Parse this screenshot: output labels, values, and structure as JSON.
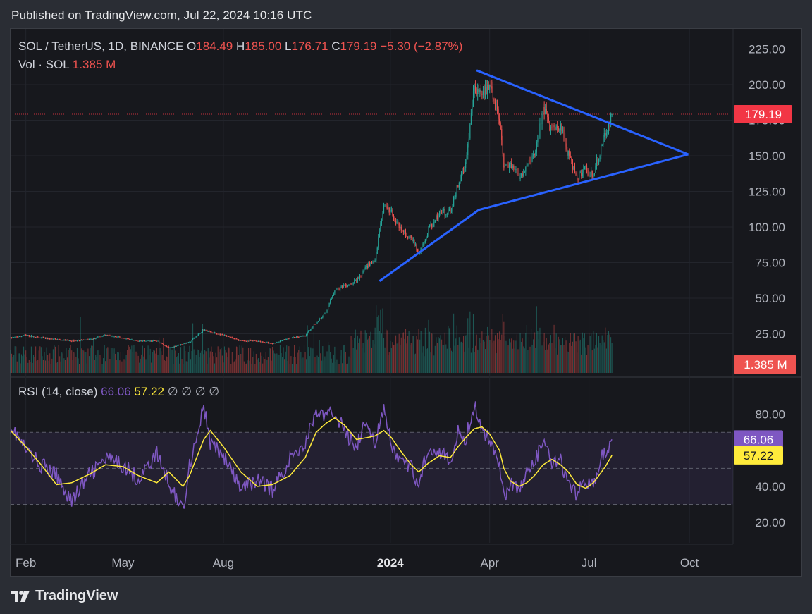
{
  "published": "Published on TradingView.com, Jul 22, 2024 10:16 UTC",
  "brand": {
    "name": "TradingView"
  },
  "colors": {
    "up": "#26a69a",
    "down": "#ef5350",
    "trendline": "#2962ff",
    "rsi": "#7e57c2",
    "rsi_ma": "#ffeb3b",
    "price_label": "#f23645"
  },
  "chart_data": [
    {
      "type": "candlestick",
      "symbol_line": {
        "name": "SOL / TetherUS, 1D, BINANCE",
        "o_label": "O",
        "o": "184.49",
        "h_label": "H",
        "h": "185.00",
        "l_label": "L",
        "l": "176.71",
        "c_label": "C",
        "c": "179.19",
        "change": "−5.30 (−2.87%)"
      },
      "volume_line": {
        "name": "Vol · SOL",
        "value": "1.385 M"
      },
      "last_price_label": "179.19",
      "volume_label": "1.385 M",
      "ylim": [
        0,
        232
      ],
      "y_ticks": [
        "225.00",
        "200.00",
        "175.00",
        "150.00",
        "125.00",
        "100.00",
        "75.00",
        "50.00",
        "25.00"
      ],
      "x_ticks": [
        "Feb",
        "May",
        "Aug",
        "2024",
        "Apr",
        "Jul",
        "Oct"
      ],
      "x_range": [
        "2023-01-18",
        "2024-11-10"
      ],
      "last_bar": "2024-07-22",
      "price_path": [
        [
          "2023-01-18",
          22
        ],
        [
          "2023-02-01",
          24
        ],
        [
          "2023-02-15",
          22
        ],
        [
          "2023-03-01",
          21
        ],
        [
          "2023-03-15",
          20
        ],
        [
          "2023-04-01",
          21
        ],
        [
          "2023-04-15",
          24
        ],
        [
          "2023-05-01",
          22
        ],
        [
          "2023-05-15",
          20
        ],
        [
          "2023-06-01",
          20
        ],
        [
          "2023-06-12",
          15
        ],
        [
          "2023-06-25",
          18
        ],
        [
          "2023-07-01",
          19
        ],
        [
          "2023-07-14",
          28
        ],
        [
          "2023-07-20",
          26
        ],
        [
          "2023-08-01",
          24
        ],
        [
          "2023-08-17",
          20
        ],
        [
          "2023-09-01",
          20
        ],
        [
          "2023-09-15",
          18
        ],
        [
          "2023-10-01",
          22
        ],
        [
          "2023-10-15",
          24
        ],
        [
          "2023-10-25",
          33
        ],
        [
          "2023-11-03",
          40
        ],
        [
          "2023-11-11",
          56
        ],
        [
          "2023-11-20",
          58
        ],
        [
          "2023-12-01",
          62
        ],
        [
          "2023-12-10",
          72
        ],
        [
          "2023-12-18",
          76
        ],
        [
          "2023-12-26",
          115
        ],
        [
          "2024-01-02",
          110
        ],
        [
          "2024-01-10",
          98
        ],
        [
          "2024-01-20",
          92
        ],
        [
          "2024-01-27",
          82
        ],
        [
          "2024-02-05",
          98
        ],
        [
          "2024-02-15",
          110
        ],
        [
          "2024-02-25",
          110
        ],
        [
          "2024-03-03",
          130
        ],
        [
          "2024-03-10",
          145
        ],
        [
          "2024-03-18",
          200
        ],
        [
          "2024-03-25",
          190
        ],
        [
          "2024-04-01",
          200
        ],
        [
          "2024-04-10",
          175
        ],
        [
          "2024-04-14",
          140
        ],
        [
          "2024-04-20",
          145
        ],
        [
          "2024-04-28",
          135
        ],
        [
          "2024-05-05",
          145
        ],
        [
          "2024-05-12",
          150
        ],
        [
          "2024-05-20",
          182
        ],
        [
          "2024-05-28",
          168
        ],
        [
          "2024-06-05",
          170
        ],
        [
          "2024-06-12",
          150
        ],
        [
          "2024-06-20",
          135
        ],
        [
          "2024-06-28",
          140
        ],
        [
          "2024-07-05",
          135
        ],
        [
          "2024-07-10",
          150
        ],
        [
          "2024-07-16",
          165
        ],
        [
          "2024-07-22",
          179.19
        ]
      ],
      "trendlines": [
        {
          "points": [
            [
              "2024-03-20",
              210
            ],
            [
              "2024-09-30",
              151
            ]
          ]
        },
        {
          "points": [
            [
              "2023-12-22",
              62
            ],
            [
              "2024-03-22",
              112
            ],
            [
              "2024-09-30",
              151
            ]
          ]
        }
      ]
    },
    {
      "type": "line",
      "indicator": "RSI",
      "header": "RSI (14, close)",
      "rsi_value": "66.06",
      "ma_value": "57.22",
      "placeholders": [
        "∅",
        "∅",
        "∅",
        "∅"
      ],
      "y_ticks": [
        "80.00",
        "40.00",
        "20.00"
      ],
      "ylim": [
        13,
        92
      ],
      "band": [
        30,
        70
      ],
      "midline": 50,
      "rsi_label": "66.06",
      "ma_label": "57.22",
      "series": [
        {
          "values_path": [
            [
              "2023-01-18",
              74
            ],
            [
              "2023-02-01",
              60
            ],
            [
              "2023-02-15",
              52
            ],
            [
              "2023-03-01",
              46
            ],
            [
              "2023-03-15",
              32
            ],
            [
              "2023-04-01",
              47
            ],
            [
              "2023-04-15",
              55
            ],
            [
              "2023-05-01",
              52
            ],
            [
              "2023-05-15",
              44
            ],
            [
              "2023-06-01",
              58
            ],
            [
              "2023-06-12",
              42
            ],
            [
              "2023-06-25",
              27
            ],
            [
              "2023-07-01",
              52
            ],
            [
              "2023-07-14",
              84
            ],
            [
              "2023-07-20",
              64
            ],
            [
              "2023-08-01",
              57
            ],
            [
              "2023-08-17",
              38
            ],
            [
              "2023-09-01",
              44
            ],
            [
              "2023-09-15",
              38
            ],
            [
              "2023-10-01",
              55
            ],
            [
              "2023-10-15",
              64
            ],
            [
              "2023-10-25",
              82
            ],
            [
              "2023-11-03",
              78
            ],
            [
              "2023-11-11",
              82
            ],
            [
              "2023-11-20",
              70
            ],
            [
              "2023-12-01",
              63
            ],
            [
              "2023-12-10",
              76
            ],
            [
              "2023-12-18",
              65
            ],
            [
              "2023-12-26",
              82
            ],
            [
              "2024-01-02",
              62
            ],
            [
              "2024-01-10",
              54
            ],
            [
              "2024-01-20",
              50
            ],
            [
              "2024-01-27",
              42
            ],
            [
              "2024-02-05",
              62
            ],
            [
              "2024-02-15",
              60
            ],
            [
              "2024-02-25",
              52
            ],
            [
              "2024-03-03",
              70
            ],
            [
              "2024-03-10",
              66
            ],
            [
              "2024-03-18",
              86
            ],
            [
              "2024-03-25",
              70
            ],
            [
              "2024-04-01",
              66
            ],
            [
              "2024-04-10",
              54
            ],
            [
              "2024-04-14",
              34
            ],
            [
              "2024-04-20",
              42
            ],
            [
              "2024-04-28",
              38
            ],
            [
              "2024-05-05",
              48
            ],
            [
              "2024-05-12",
              52
            ],
            [
              "2024-05-20",
              66
            ],
            [
              "2024-05-28",
              52
            ],
            [
              "2024-06-05",
              54
            ],
            [
              "2024-06-12",
              40
            ],
            [
              "2024-06-20",
              35
            ],
            [
              "2024-06-28",
              44
            ],
            [
              "2024-07-05",
              40
            ],
            [
              "2024-07-10",
              52
            ],
            [
              "2024-07-16",
              60
            ],
            [
              "2024-07-22",
              66.06
            ]
          ]
        },
        {
          "values_path": [
            [
              "2023-01-18",
              71
            ],
            [
              "2023-02-01",
              62
            ],
            [
              "2023-02-15",
              52
            ],
            [
              "2023-03-01",
              41
            ],
            [
              "2023-03-15",
              42
            ],
            [
              "2023-04-01",
              47
            ],
            [
              "2023-04-15",
              52
            ],
            [
              "2023-05-01",
              51
            ],
            [
              "2023-05-15",
              46
            ],
            [
              "2023-06-01",
              42
            ],
            [
              "2023-06-12",
              48
            ],
            [
              "2023-06-25",
              40
            ],
            [
              "2023-07-01",
              46
            ],
            [
              "2023-07-14",
              66
            ],
            [
              "2023-07-20",
              71
            ],
            [
              "2023-08-01",
              62
            ],
            [
              "2023-08-17",
              48
            ],
            [
              "2023-09-01",
              40
            ],
            [
              "2023-09-15",
              41
            ],
            [
              "2023-10-01",
              46
            ],
            [
              "2023-10-15",
              56
            ],
            [
              "2023-10-25",
              70
            ],
            [
              "2023-11-03",
              75
            ],
            [
              "2023-11-11",
              78
            ],
            [
              "2023-11-20",
              74
            ],
            [
              "2023-12-01",
              66
            ],
            [
              "2023-12-10",
              67
            ],
            [
              "2023-12-18",
              68
            ],
            [
              "2023-12-26",
              71
            ],
            [
              "2024-01-02",
              67
            ],
            [
              "2024-01-10",
              60
            ],
            [
              "2024-01-20",
              52
            ],
            [
              "2024-01-27",
              48
            ],
            [
              "2024-02-05",
              53
            ],
            [
              "2024-02-15",
              57
            ],
            [
              "2024-02-25",
              56
            ],
            [
              "2024-03-03",
              62
            ],
            [
              "2024-03-10",
              67
            ],
            [
              "2024-03-18",
              72
            ],
            [
              "2024-03-25",
              73
            ],
            [
              "2024-04-01",
              69
            ],
            [
              "2024-04-10",
              60
            ],
            [
              "2024-04-14",
              50
            ],
            [
              "2024-04-20",
              43
            ],
            [
              "2024-04-28",
              40
            ],
            [
              "2024-05-05",
              42
            ],
            [
              "2024-05-12",
              46
            ],
            [
              "2024-05-20",
              52
            ],
            [
              "2024-05-28",
              55
            ],
            [
              "2024-06-05",
              52
            ],
            [
              "2024-06-12",
              48
            ],
            [
              "2024-06-20",
              41
            ],
            [
              "2024-06-28",
              39
            ],
            [
              "2024-07-05",
              42
            ],
            [
              "2024-07-10",
              46
            ],
            [
              "2024-07-16",
              51
            ],
            [
              "2024-07-22",
              57.22
            ]
          ]
        }
      ]
    }
  ]
}
